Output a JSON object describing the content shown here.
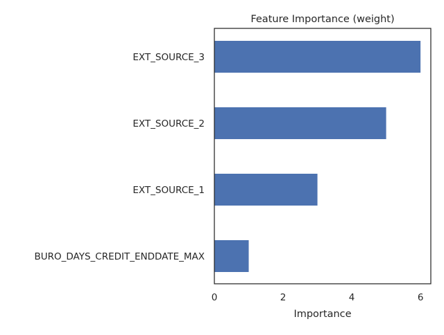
{
  "chart_data": {
    "type": "bar",
    "orientation": "horizontal",
    "title": "Feature Importance (weight)",
    "xlabel": "Importance",
    "ylabel": "",
    "categories": [
      "EXT_SOURCE_3",
      "EXT_SOURCE_2",
      "EXT_SOURCE_1",
      "BURO_DAYS_CREDIT_ENDDATE_MAX"
    ],
    "values": [
      6,
      5,
      3,
      1
    ],
    "xlim": [
      0,
      6.3
    ],
    "xticks": [
      0,
      2,
      4,
      6
    ],
    "grid": false,
    "legend": "none",
    "bar_color": "#4c72b0",
    "axis_color": "#262626"
  }
}
